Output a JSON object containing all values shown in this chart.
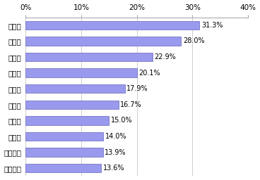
{
  "categories": [
    "京都府",
    "北海道",
    "長野県",
    "東京都",
    "大阪府",
    "静岡県",
    "新潟県",
    "沖縄県",
    "神奈川県",
    "鹿児島県"
  ],
  "values": [
    31.3,
    28.0,
    22.9,
    20.1,
    17.9,
    16.7,
    15.0,
    14.0,
    13.9,
    13.6
  ],
  "labels": [
    "31.3%",
    "28.0%",
    "22.9%",
    "20.1%",
    "17.9%",
    "16.7%",
    "15.0%",
    "14.0%",
    "13.9%",
    "13.6%"
  ],
  "bar_color": "#9999ee",
  "bar_edge_color": "#6666bb",
  "background_color": "#ffffff",
  "xlim": [
    0,
    40
  ],
  "xticks": [
    0,
    10,
    20,
    30,
    40
  ],
  "xtick_labels": [
    "0%",
    "10%",
    "20%",
    "30%",
    "40%"
  ],
  "grid_color": "#bbbbbb",
  "label_fontsize": 7.5,
  "tick_fontsize": 7.5,
  "value_fontsize": 7.0,
  "bar_height": 0.55
}
